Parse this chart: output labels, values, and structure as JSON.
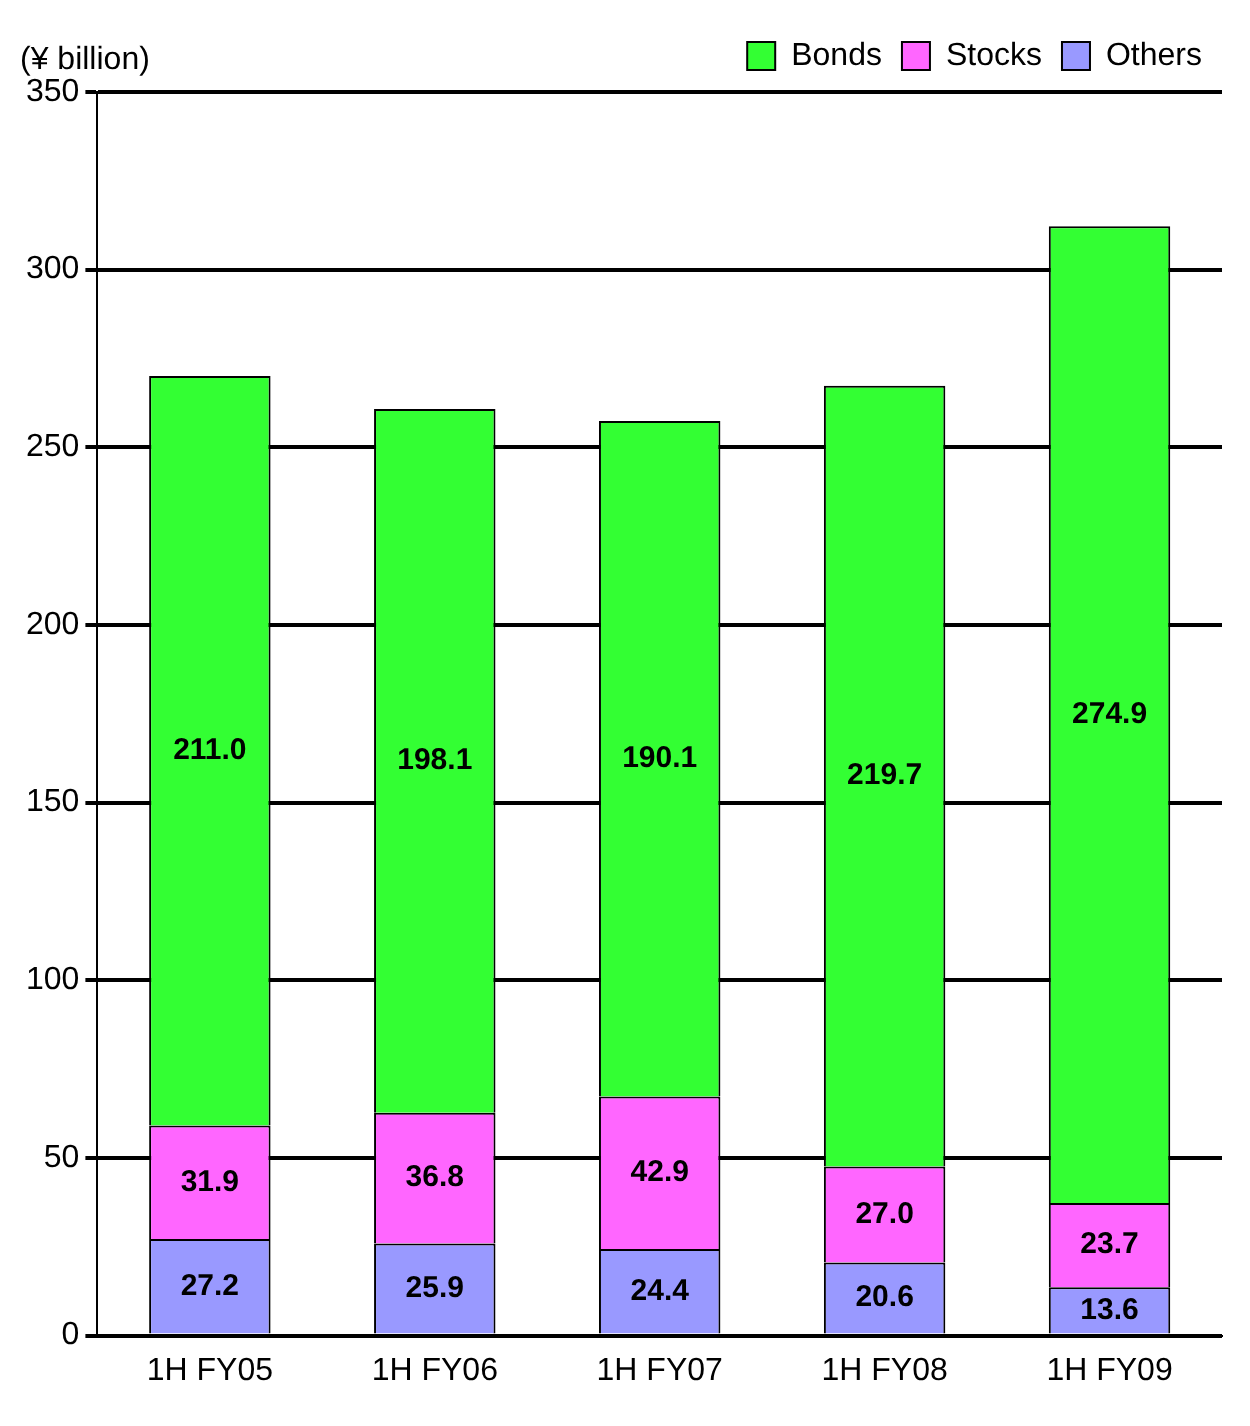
{
  "chart_data": {
    "type": "bar",
    "ylabel": "(¥ billion)",
    "categories": [
      "1H FY05",
      "1H FY06",
      "1H FY07",
      "1H FY08",
      "1H FY09"
    ],
    "stacked": true,
    "series": [
      {
        "name": "Others",
        "color": "#9999ff",
        "values": [
          27.2,
          25.9,
          24.4,
          20.6,
          13.6
        ],
        "value_labels": [
          "27.2",
          "25.9",
          "24.4",
          "20.6",
          "13.6"
        ]
      },
      {
        "name": "Stocks",
        "color": "#ff66ff",
        "values": [
          31.9,
          36.8,
          42.9,
          27.0,
          23.7
        ],
        "value_labels": [
          "31.9",
          "36.8",
          "42.9",
          "27.0",
          "23.7"
        ]
      },
      {
        "name": "Bonds",
        "color": "#33ff33",
        "values": [
          211.0,
          198.1,
          190.1,
          219.7,
          274.9
        ],
        "value_labels": [
          "211.0",
          "198.1",
          "190.1",
          "219.7",
          "274.9"
        ]
      }
    ],
    "ylim": [
      0,
      350
    ],
    "yticks": [
      0,
      50,
      100,
      150,
      200,
      250,
      300,
      350
    ],
    "grid": "y",
    "legend": "top right"
  }
}
